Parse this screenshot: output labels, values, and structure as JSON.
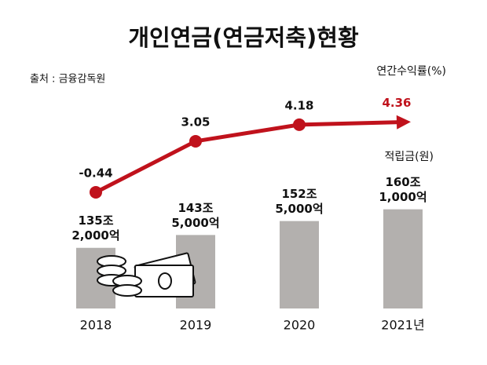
{
  "chart_data": {
    "type": "bar",
    "title": "개인연금(연금저축)현황",
    "source": "출처 : 금융감독원",
    "categories": [
      "2018",
      "2019",
      "2020",
      "2021년"
    ],
    "series": [
      {
        "name": "적립금(원)",
        "type": "bar",
        "color": "#b3b0ae",
        "values": [
          135.2,
          143.5,
          152.5,
          160.1
        ],
        "value_labels": [
          [
            "135조",
            "2,000억"
          ],
          [
            "143조",
            "5,000억"
          ],
          [
            "152조",
            "5,000억"
          ],
          [
            "160조",
            "1,000억"
          ]
        ]
      },
      {
        "name": "연간수익률(%)",
        "type": "line",
        "axis": "y2",
        "color": "#c0121c",
        "values": [
          -0.44,
          3.05,
          4.18,
          4.36
        ]
      }
    ],
    "ylim": [
      96,
      200
    ],
    "y2lim": [
      -2,
      6
    ]
  }
}
